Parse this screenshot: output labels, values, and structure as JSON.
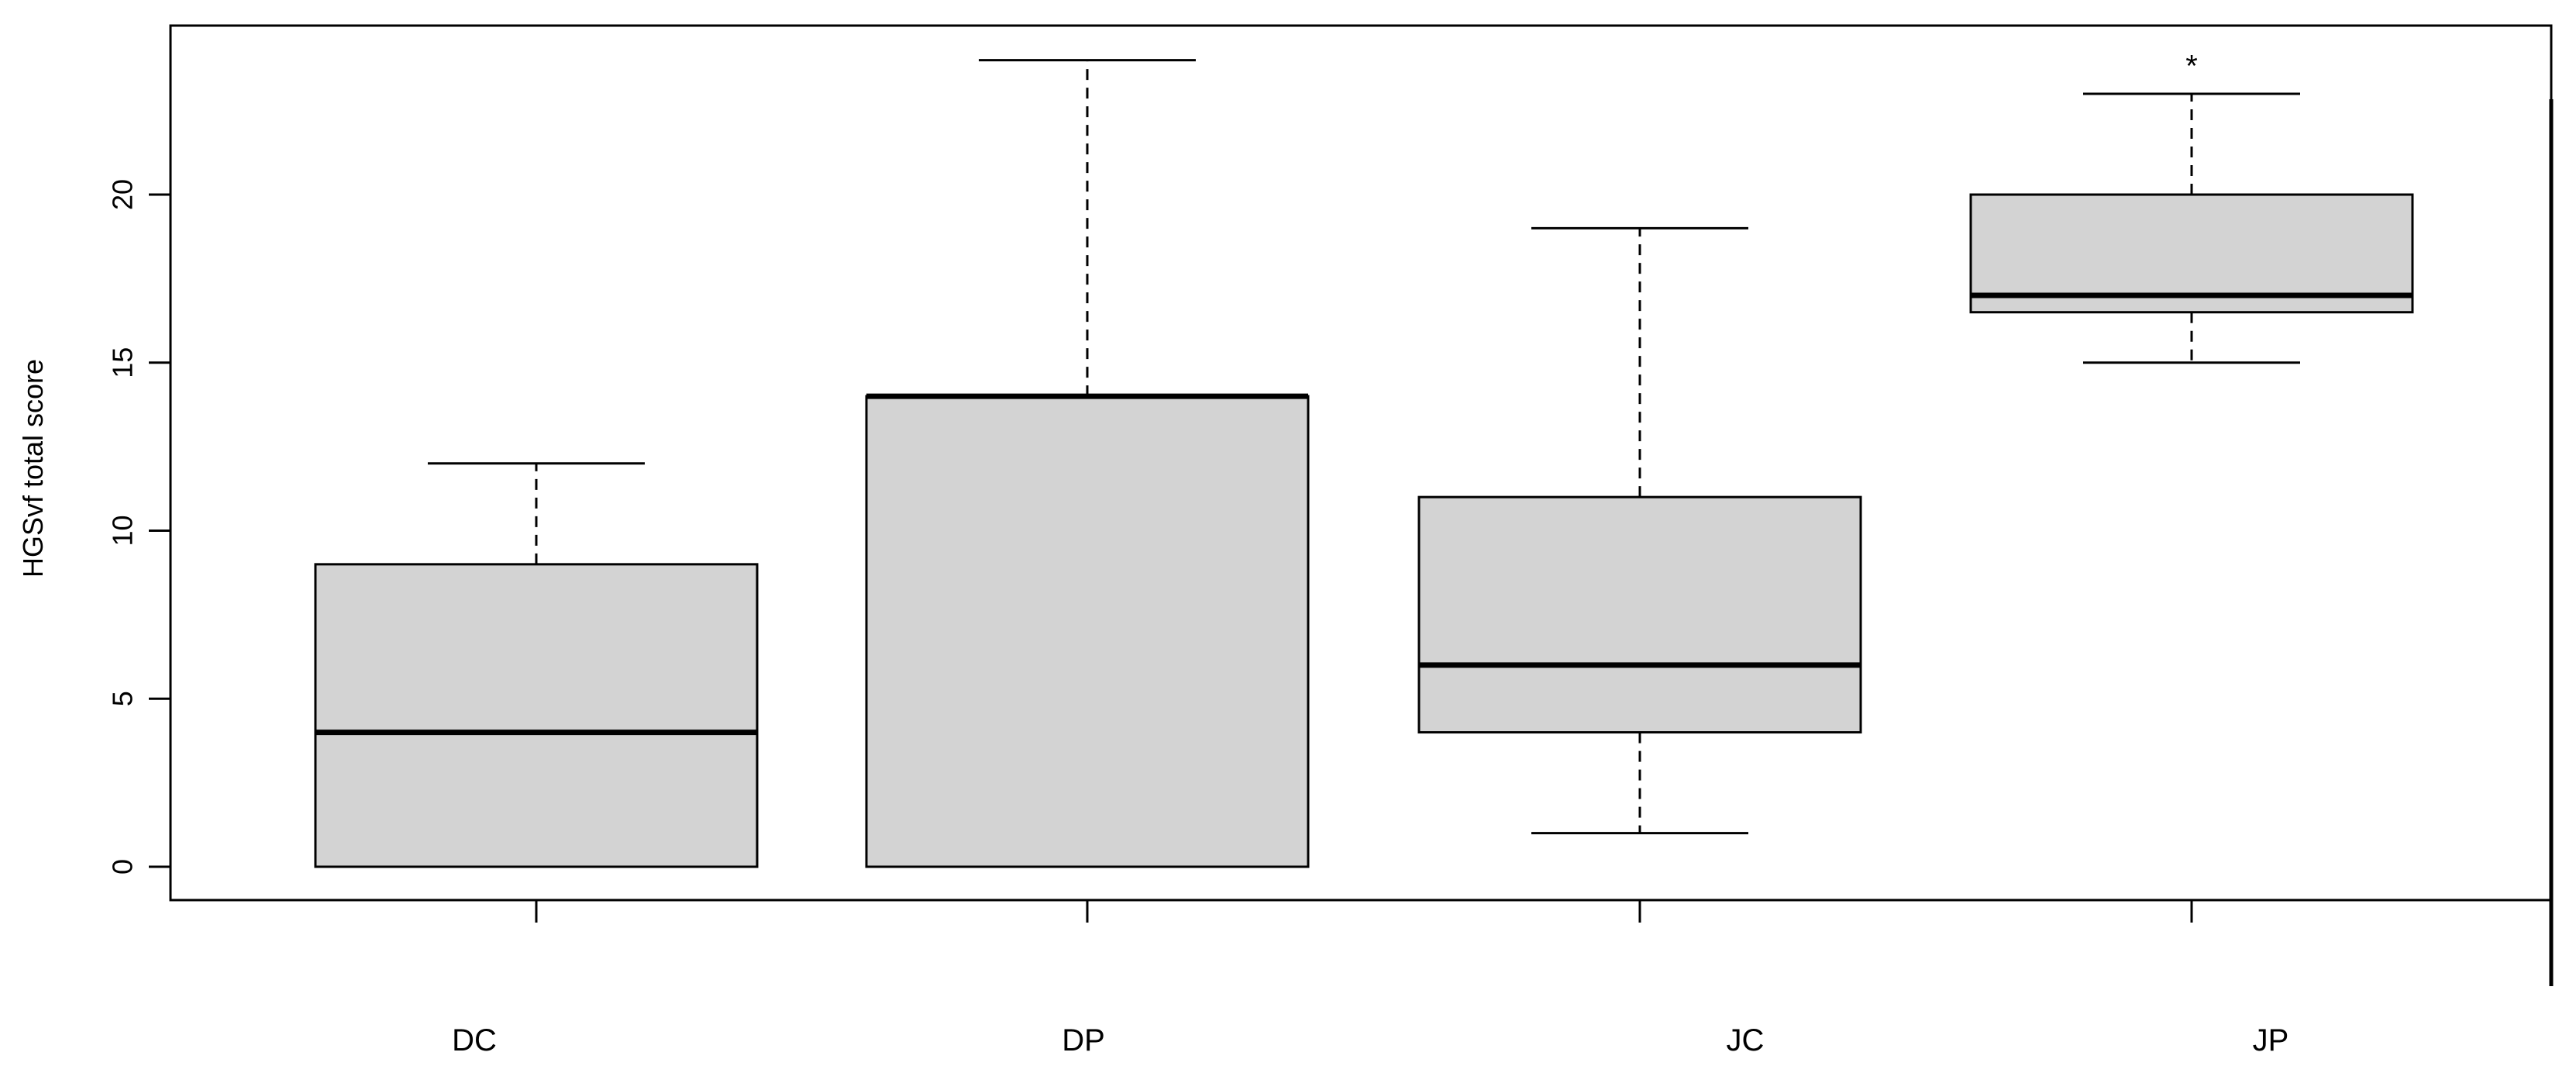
{
  "chart_data": {
    "type": "box",
    "ylabel": "HGSvf total score",
    "ylim": [
      -1,
      24.5
    ],
    "yticks": [
      0,
      5,
      10,
      15,
      20
    ],
    "grid": false,
    "categories": [
      "DC",
      "DP",
      "JC",
      "JP"
    ],
    "boxes": [
      {
        "category": "DC",
        "whisker_low": 0,
        "q1": 0,
        "median": 4,
        "q3": 9,
        "whisker_high": 12
      },
      {
        "category": "DP",
        "whisker_low": 0,
        "q1": 0,
        "median": 14,
        "q3": 14,
        "whisker_high": 24
      },
      {
        "category": "JC",
        "whisker_low": 1,
        "q1": 4,
        "median": 6,
        "q3": 11,
        "whisker_high": 19
      },
      {
        "category": "JP",
        "whisker_low": 15,
        "q1": 16.5,
        "median": 17,
        "q3": 20,
        "whisker_high": 23
      }
    ],
    "box_fill": "#d3d3d3",
    "annotations": [
      {
        "category": "JP",
        "text": "*",
        "y": 23.8
      }
    ]
  }
}
